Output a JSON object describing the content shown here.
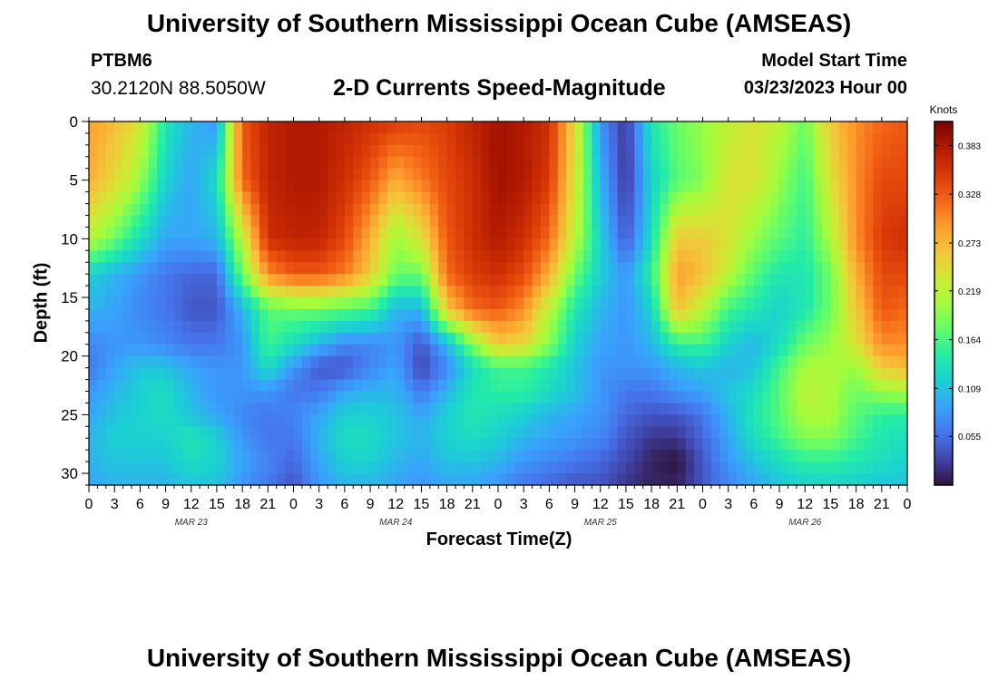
{
  "header": {
    "title": "University of Southern Mississippi Ocean Cube (AMSEAS)",
    "station": "PTBM6",
    "coordinates": "30.2120N  88.5050W",
    "subtitle": "2-D Currents Speed-Magnitude",
    "model_start_label": "Model Start Time",
    "model_start_value": "03/23/2023 Hour 00"
  },
  "footer": {
    "title": "University of Southern Mississippi Ocean Cube (AMSEAS)"
  },
  "chart_data": {
    "type": "heatmap",
    "title": "2-D Currents Speed-Magnitude",
    "xlabel": "Forecast Time(Z)",
    "ylabel": "Depth (ft)",
    "y_ticks": [
      0,
      5,
      10,
      15,
      20,
      25,
      30
    ],
    "y_tick_labels": [
      "0",
      "5",
      "10",
      "15",
      "20",
      "25",
      "30"
    ],
    "ylim": [
      0,
      31
    ],
    "y_inverted": true,
    "x_hours_range": [
      0,
      96
    ],
    "x_tick_hours": [
      0,
      3,
      6,
      9,
      12,
      15,
      18,
      21,
      24,
      27,
      30,
      33,
      36,
      39,
      42,
      45,
      48,
      51,
      54,
      57,
      60,
      63,
      66,
      69,
      72,
      75,
      78,
      81,
      84,
      87,
      90,
      93,
      96
    ],
    "x_tick_labels": [
      "0",
      "3",
      "6",
      "9",
      "12",
      "15",
      "18",
      "21",
      "0",
      "3",
      "6",
      "9",
      "12",
      "15",
      "18",
      "21",
      "0",
      "3",
      "6",
      "9",
      "12",
      "15",
      "18",
      "21",
      "0",
      "3",
      "6",
      "9",
      "12",
      "15",
      "18",
      "21",
      "0"
    ],
    "date_labels": [
      {
        "hour": 12,
        "label": "MAR 23"
      },
      {
        "hour": 36,
        "label": "MAR 24"
      },
      {
        "hour": 60,
        "label": "MAR 25"
      },
      {
        "hour": 84,
        "label": "MAR 26"
      }
    ],
    "colorbar": {
      "unit_label": "Knots",
      "range": [
        0.0,
        0.41
      ],
      "ticks": [
        0.055,
        0.109,
        0.164,
        0.219,
        0.273,
        0.328,
        0.383
      ],
      "tick_labels": [
        "0.055",
        "0.109",
        "0.164",
        "0.219",
        "0.273",
        "0.328",
        "0.383"
      ],
      "colormap": [
        "#30123b",
        "#4145ab",
        "#4675ed",
        "#39a2fc",
        "#1bcfd4",
        "#24eca6",
        "#61fc6c",
        "#a4fc3b",
        "#d1e834",
        "#f3c63a",
        "#fe9b2d",
        "#f36315",
        "#d93806",
        "#b11901",
        "#7a0402"
      ]
    },
    "depths_ft": [
      0,
      5,
      10,
      13,
      16,
      19,
      21,
      23,
      25,
      27,
      29,
      31
    ],
    "times_hr": [
      0,
      3,
      6,
      9,
      12,
      15,
      18,
      21,
      24,
      27,
      30,
      33,
      36,
      39,
      42,
      45,
      48,
      51,
      54,
      57,
      60,
      63,
      66,
      69,
      72,
      75,
      78,
      81,
      84,
      87,
      90,
      93,
      96
    ],
    "values_knots": [
      [
        0.29,
        0.27,
        0.24,
        0.14,
        0.1,
        0.08,
        0.33,
        0.37,
        0.38,
        0.38,
        0.37,
        0.36,
        0.35,
        0.34,
        0.35,
        0.37,
        0.39,
        0.38,
        0.36,
        0.25,
        0.08,
        0.02,
        0.14,
        0.18,
        0.2,
        0.22,
        0.24,
        0.22,
        0.18,
        0.26,
        0.3,
        0.32,
        0.33
      ],
      [
        0.28,
        0.25,
        0.2,
        0.12,
        0.09,
        0.13,
        0.32,
        0.37,
        0.38,
        0.38,
        0.36,
        0.33,
        0.28,
        0.31,
        0.34,
        0.36,
        0.39,
        0.38,
        0.35,
        0.24,
        0.1,
        0.02,
        0.12,
        0.17,
        0.19,
        0.24,
        0.24,
        0.2,
        0.16,
        0.24,
        0.3,
        0.34,
        0.34
      ],
      [
        0.22,
        0.18,
        0.13,
        0.09,
        0.09,
        0.1,
        0.22,
        0.36,
        0.37,
        0.37,
        0.34,
        0.28,
        0.2,
        0.24,
        0.33,
        0.36,
        0.38,
        0.36,
        0.32,
        0.22,
        0.12,
        0.04,
        0.13,
        0.26,
        0.26,
        0.24,
        0.2,
        0.17,
        0.15,
        0.21,
        0.3,
        0.35,
        0.36
      ],
      [
        0.12,
        0.1,
        0.08,
        0.06,
        0.05,
        0.05,
        0.18,
        0.3,
        0.33,
        0.33,
        0.31,
        0.26,
        0.18,
        0.18,
        0.32,
        0.35,
        0.36,
        0.34,
        0.28,
        0.18,
        0.12,
        0.08,
        0.15,
        0.29,
        0.27,
        0.22,
        0.17,
        0.14,
        0.14,
        0.18,
        0.28,
        0.34,
        0.34
      ],
      [
        0.1,
        0.09,
        0.07,
        0.06,
        0.04,
        0.04,
        0.1,
        0.17,
        0.18,
        0.18,
        0.17,
        0.16,
        0.1,
        0.1,
        0.26,
        0.32,
        0.33,
        0.3,
        0.22,
        0.14,
        0.1,
        0.08,
        0.12,
        0.27,
        0.22,
        0.16,
        0.14,
        0.12,
        0.14,
        0.18,
        0.26,
        0.33,
        0.32
      ],
      [
        0.07,
        0.08,
        0.08,
        0.07,
        0.06,
        0.06,
        0.08,
        0.16,
        0.13,
        0.1,
        0.07,
        0.07,
        0.08,
        0.04,
        0.1,
        0.19,
        0.26,
        0.25,
        0.19,
        0.12,
        0.09,
        0.08,
        0.1,
        0.15,
        0.16,
        0.12,
        0.1,
        0.13,
        0.18,
        0.2,
        0.24,
        0.3,
        0.3
      ],
      [
        0.06,
        0.09,
        0.11,
        0.11,
        0.09,
        0.08,
        0.08,
        0.13,
        0.08,
        0.04,
        0.04,
        0.07,
        0.09,
        0.03,
        0.07,
        0.13,
        0.16,
        0.16,
        0.14,
        0.11,
        0.08,
        0.08,
        0.08,
        0.1,
        0.11,
        0.1,
        0.11,
        0.16,
        0.21,
        0.21,
        0.2,
        0.26,
        0.27
      ],
      [
        0.08,
        0.1,
        0.12,
        0.13,
        0.1,
        0.08,
        0.08,
        0.08,
        0.06,
        0.06,
        0.09,
        0.1,
        0.1,
        0.06,
        0.1,
        0.14,
        0.15,
        0.15,
        0.13,
        0.11,
        0.08,
        0.06,
        0.06,
        0.08,
        0.09,
        0.11,
        0.13,
        0.17,
        0.22,
        0.21,
        0.18,
        0.2,
        0.21
      ],
      [
        0.09,
        0.11,
        0.12,
        0.13,
        0.11,
        0.09,
        0.07,
        0.06,
        0.07,
        0.09,
        0.12,
        0.12,
        0.11,
        0.09,
        0.12,
        0.14,
        0.13,
        0.12,
        0.1,
        0.09,
        0.08,
        0.05,
        0.04,
        0.04,
        0.06,
        0.1,
        0.14,
        0.17,
        0.21,
        0.21,
        0.17,
        0.15,
        0.15
      ],
      [
        0.1,
        0.12,
        0.12,
        0.12,
        0.14,
        0.12,
        0.08,
        0.06,
        0.06,
        0.1,
        0.13,
        0.13,
        0.11,
        0.1,
        0.12,
        0.13,
        0.12,
        0.1,
        0.09,
        0.08,
        0.07,
        0.04,
        0.02,
        0.02,
        0.05,
        0.09,
        0.13,
        0.16,
        0.19,
        0.19,
        0.16,
        0.14,
        0.13
      ],
      [
        0.1,
        0.11,
        0.11,
        0.11,
        0.13,
        0.12,
        0.09,
        0.07,
        0.05,
        0.09,
        0.12,
        0.12,
        0.1,
        0.09,
        0.11,
        0.11,
        0.1,
        0.08,
        0.07,
        0.06,
        0.05,
        0.03,
        0.01,
        0.0,
        0.04,
        0.08,
        0.11,
        0.13,
        0.15,
        0.15,
        0.14,
        0.13,
        0.12
      ],
      [
        0.09,
        0.1,
        0.1,
        0.1,
        0.11,
        0.11,
        0.08,
        0.06,
        0.04,
        0.08,
        0.1,
        0.1,
        0.09,
        0.08,
        0.09,
        0.09,
        0.08,
        0.06,
        0.05,
        0.04,
        0.04,
        0.02,
        0.01,
        0.01,
        0.04,
        0.07,
        0.09,
        0.11,
        0.12,
        0.12,
        0.12,
        0.11,
        0.11
      ]
    ]
  }
}
